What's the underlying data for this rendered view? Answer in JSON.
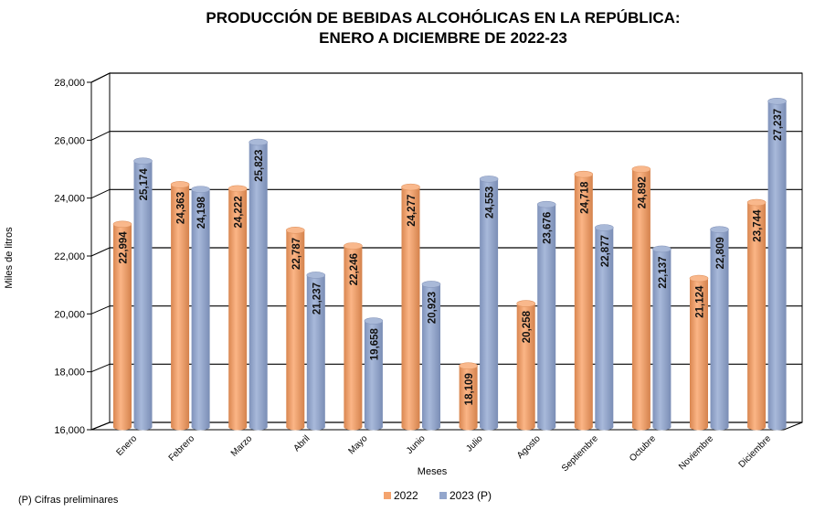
{
  "chart_data": {
    "type": "bar",
    "title_line1": "PRODUCCIÓN DE BEBIDAS ALCOHÓLICAS EN LA REPÚBLICA:",
    "title_line2": "ENERO A DICIEMBRE DE 2022-23",
    "xlabel": "Meses",
    "ylabel": "Miles de litros",
    "ylim": [
      16000,
      28000
    ],
    "yticks": [
      16000,
      18000,
      20000,
      22000,
      24000,
      26000,
      28000
    ],
    "ytick_labels": [
      "16,000",
      "18,000",
      "20,000",
      "22,000",
      "24,000",
      "26,000",
      "28,000"
    ],
    "grid": true,
    "legend_position": "bottom",
    "categories": [
      "Enero",
      "Febrero",
      "Marzo",
      "Abril",
      "Mayo",
      "Junio",
      "Julio",
      "Agosto",
      "Septiembre",
      "Octubre",
      "Noviembre",
      "Diciembre"
    ],
    "series": [
      {
        "name": "2022",
        "color": "#F4A46E",
        "values": [
          22994,
          24363,
          24222,
          22787,
          22246,
          24277,
          18109,
          20258,
          24718,
          24892,
          21124,
          23744
        ],
        "labels": [
          "22,994",
          "24,363",
          "24,222",
          "22,787",
          "22,246",
          "24,277",
          "18,109",
          "20,258",
          "24,718",
          "24,892",
          "21,124",
          "23,744"
        ]
      },
      {
        "name": "2023 (P)",
        "color": "#93A6CC",
        "values": [
          25174,
          24198,
          25823,
          21237,
          19658,
          20923,
          24553,
          23676,
          22877,
          22137,
          22809,
          27237
        ],
        "labels": [
          "25,174",
          "24,198",
          "25,823",
          "21,237",
          "19,658",
          "20,923",
          "24,553",
          "23,676",
          "22,877",
          "22,137",
          "22,809",
          "27,237"
        ]
      }
    ],
    "footnote": "(P) Cifras preliminares"
  }
}
